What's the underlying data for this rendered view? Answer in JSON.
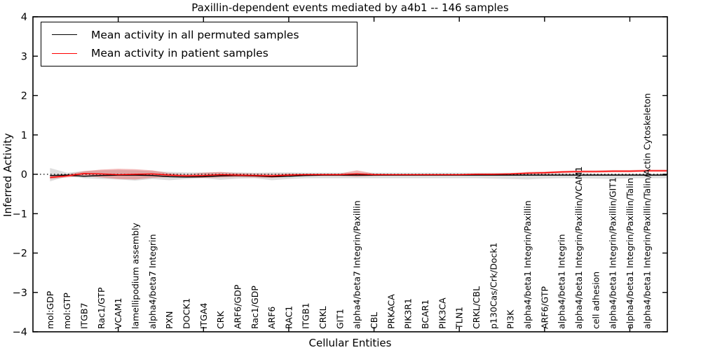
{
  "title": "Paxillin-dependent events mediated by a4b1 -- 146 samples",
  "xlabel": "Cellular Entities",
  "ylabel": "Inferred Activity",
  "legend": {
    "items": [
      {
        "label": "Mean activity in all permuted samples",
        "color": "#000000"
      },
      {
        "label": "Mean activity in patient samples",
        "color": "#ff0000"
      }
    ]
  },
  "chart_data": {
    "type": "line",
    "title": "Paxillin-dependent events mediated by a4b1 -- 146 samples",
    "xlabel": "Cellular Entities",
    "ylabel": "Inferred Activity",
    "ylim": [
      -4,
      4
    ],
    "yticks": [
      4,
      3,
      2,
      1,
      0,
      -1,
      -2,
      -3,
      -4
    ],
    "grid": false,
    "zero_line": true,
    "legend_position": "upper left",
    "xtick_every": 5,
    "categories": [
      "mol:GDP",
      "mol:GTP",
      "ITGB7",
      "Rac1/GTP",
      "VCAM1",
      "lamellipodium assembly",
      "alpha4/beta7 Integrin",
      "PXN",
      "DOCK1",
      "ITGA4",
      "CRK",
      "ARF6/GDP",
      "Rac1/GDP",
      "ARF6",
      "RAC1",
      "ITGB1",
      "CRKL",
      "GIT1",
      "alpha4/beta7 Integrin/Paxillin",
      "CBL",
      "PRKACA",
      "PIK3R1",
      "BCAR1",
      "PIK3CA",
      "TLN1",
      "CRKL/CBL",
      "p130Cas/Crk/Dock1",
      "PI3K",
      "alpha4/beta1 Integrin/Paxillin",
      "ARF6/GTP",
      "alpha4/beta1 Integrin",
      "alpha4/beta1 Integrin/Paxillin/VCAM1",
      "cell adhesion",
      "alpha4/beta1 Integrin/Paxillin/GIT1",
      "alpha4/beta1 Integrin/Paxillin/Talin",
      "alpha4/beta1 Integrin/Paxillin/Talin/Actin Cytoskeleton"
    ],
    "series": [
      {
        "name": "Mean activity in all permuted samples",
        "color": "#000000",
        "values": [
          -0.03,
          -0.02,
          -0.05,
          -0.03,
          -0.02,
          -0.02,
          -0.03,
          -0.06,
          -0.07,
          -0.06,
          -0.04,
          -0.03,
          -0.04,
          -0.06,
          -0.05,
          -0.03,
          -0.02,
          -0.02,
          -0.02,
          -0.02,
          -0.02,
          -0.02,
          -0.02,
          -0.02,
          -0.02,
          -0.02,
          -0.02,
          -0.02,
          -0.02,
          -0.02,
          -0.02,
          -0.02,
          -0.02,
          -0.02,
          -0.02,
          -0.02
        ]
      },
      {
        "name": "Mean activity in patient samples",
        "color": "#ff0000",
        "values": [
          -0.08,
          -0.04,
          0.02,
          0.01,
          -0.01,
          0.0,
          0.01,
          -0.02,
          -0.04,
          -0.03,
          -0.01,
          -0.02,
          -0.03,
          -0.04,
          -0.02,
          -0.01,
          -0.01,
          -0.01,
          0.01,
          -0.01,
          -0.01,
          -0.01,
          -0.01,
          -0.01,
          -0.01,
          0.0,
          0.0,
          0.01,
          0.03,
          0.04,
          0.06,
          0.07,
          0.07,
          0.08,
          0.08,
          0.09
        ]
      }
    ],
    "bands": [
      {
        "name": "permuted-samples-std-band",
        "color": "#a8a8a8",
        "opacity": 0.38,
        "upper": [
          0.16,
          0.04,
          0.08,
          0.1,
          0.11,
          0.1,
          0.08,
          0.06,
          0.05,
          0.05,
          0.05,
          0.05,
          0.04,
          0.05,
          0.05,
          0.04,
          0.04,
          0.04,
          0.04,
          0.04,
          0.04,
          0.04,
          0.04,
          0.04,
          0.04,
          0.04,
          0.04,
          0.04,
          0.03,
          0.03,
          0.03,
          0.03,
          0.02,
          0.02,
          0.02,
          0.02
        ],
        "lower": [
          -0.18,
          -0.05,
          -0.1,
          -0.12,
          -0.13,
          -0.16,
          -0.12,
          -0.15,
          -0.12,
          -0.1,
          -0.14,
          -0.11,
          -0.1,
          -0.15,
          -0.12,
          -0.1,
          -0.1,
          -0.1,
          -0.1,
          -0.1,
          -0.1,
          -0.1,
          -0.1,
          -0.1,
          -0.1,
          -0.1,
          -0.11,
          -0.12,
          -0.13,
          -0.11,
          -0.1,
          -0.1,
          -0.11,
          -0.12,
          -0.1,
          -0.1
        ]
      },
      {
        "name": "patient-samples-std-band",
        "color": "#e04848",
        "opacity": 0.4,
        "upper": [
          -0.04,
          0.0,
          0.08,
          0.12,
          0.14,
          0.13,
          0.1,
          0.03,
          0.0,
          0.04,
          0.06,
          0.03,
          0.02,
          0.01,
          0.02,
          0.02,
          0.02,
          0.02,
          0.1,
          0.02,
          0.01,
          0.01,
          0.01,
          0.01,
          0.01,
          0.02,
          0.02,
          0.03,
          0.06,
          0.07,
          0.09,
          0.1,
          0.1,
          0.11,
          0.11,
          0.12
        ],
        "lower": [
          -0.12,
          -0.08,
          -0.04,
          -0.08,
          -0.12,
          -0.13,
          -0.09,
          -0.07,
          -0.08,
          -0.09,
          -0.08,
          -0.07,
          -0.08,
          -0.09,
          -0.06,
          -0.04,
          -0.04,
          -0.04,
          -0.06,
          -0.04,
          -0.03,
          -0.03,
          -0.03,
          -0.03,
          -0.03,
          -0.02,
          -0.02,
          -0.01,
          0.0,
          0.01,
          0.03,
          0.04,
          0.04,
          0.05,
          0.05,
          0.06
        ]
      }
    ]
  }
}
